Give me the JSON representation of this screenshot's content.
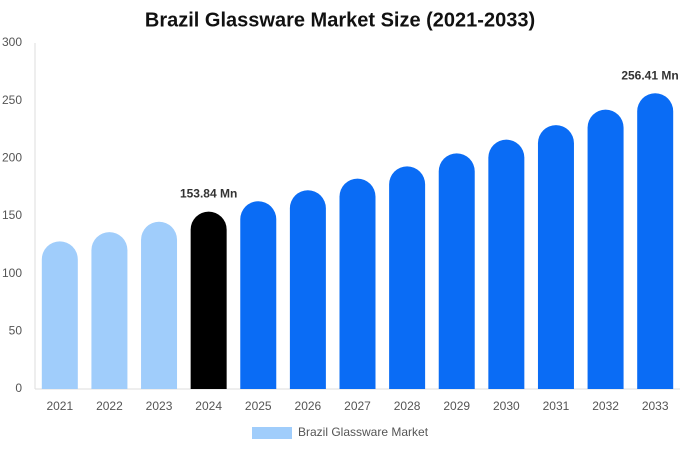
{
  "chart_data": {
    "type": "bar",
    "title": "Brazil Glassware Market Size (2021-2033)",
    "categories": [
      "2021",
      "2022",
      "2023",
      "2024",
      "2025",
      "2026",
      "2027",
      "2028",
      "2029",
      "2030",
      "2031",
      "2032",
      "2033"
    ],
    "series": [
      {
        "name": "Brazil Glassware Market",
        "color": "#a0cdfb",
        "values": [
          128,
          136,
          145,
          153.84,
          162.8,
          172.3,
          182.4,
          193.0,
          204.3,
          216.2,
          228.8,
          242.2,
          256.41
        ],
        "value_labels": [
          null,
          null,
          null,
          "153.84 Mn",
          null,
          null,
          null,
          null,
          null,
          null,
          null,
          null,
          "256.41 Mn"
        ],
        "bar_colors": [
          "#a0cdfb",
          "#a0cdfb",
          "#a0cdfb",
          "#000000",
          "#0a6cf5",
          "#0a6cf5",
          "#0a6cf5",
          "#0a6cf5",
          "#0a6cf5",
          "#0a6cf5",
          "#0a6cf5",
          "#0a6cf5",
          "#0a6cf5"
        ]
      }
    ],
    "ylim": [
      0,
      300
    ],
    "yticks": [
      0,
      50,
      100,
      150,
      200,
      250,
      300
    ],
    "grid": false
  }
}
